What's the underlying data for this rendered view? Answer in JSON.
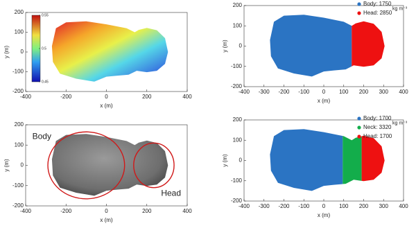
{
  "chart_data": [
    {
      "type": "shape-map",
      "variant": "colormap",
      "xlabel": "x (m)",
      "ylabel": "y (m)",
      "xlim": [
        -400,
        400
      ],
      "xticks": [
        -400,
        -200,
        0,
        200,
        400
      ],
      "ylim": [
        -200,
        200
      ],
      "yticks": [
        -200,
        -100,
        0,
        100,
        200
      ],
      "clim": [
        0.45,
        0.55
      ],
      "cticks": [
        0.45,
        0.5,
        0.55
      ]
    },
    {
      "type": "shape-map",
      "variant": "regions",
      "xlabel": "x (m)",
      "ylabel": "y (m)",
      "xlim": [
        -400,
        400
      ],
      "xticks": [
        -400,
        -300,
        -200,
        -100,
        0,
        100,
        200,
        300,
        400
      ],
      "ylim": [
        -200,
        200
      ],
      "yticks": [
        -200,
        -100,
        0,
        100,
        200
      ],
      "series": [
        {
          "name": "Body: 1750",
          "color": "#2b74c3"
        },
        {
          "name": "Head: 2850",
          "color": "#ee1111"
        }
      ],
      "unit": "kg m⁻³"
    },
    {
      "type": "shape-map",
      "variant": "ellipses",
      "xlabel": "x (m)",
      "ylabel": "y (m)",
      "xlim": [
        -400,
        400
      ],
      "xticks": [
        -400,
        -200,
        0,
        200,
        400
      ],
      "ylim": [
        -200,
        200
      ],
      "yticks": [
        -200,
        -100,
        0,
        100,
        200
      ],
      "annotations": [
        "Body",
        "Head"
      ]
    },
    {
      "type": "shape-map",
      "variant": "regions",
      "xlabel": "x (m)",
      "ylabel": "y (m)",
      "xlim": [
        -400,
        400
      ],
      "xticks": [
        -400,
        -300,
        -200,
        -100,
        0,
        100,
        200,
        300,
        400
      ],
      "ylim": [
        -200,
        200
      ],
      "yticks": [
        -200,
        -100,
        0,
        100,
        200
      ],
      "series": [
        {
          "name": "Body: 1700",
          "color": "#2b74c3"
        },
        {
          "name": "Neck: 3320",
          "color": "#13ad4b"
        },
        {
          "name": "Head: 1700",
          "color": "#ee1111"
        }
      ],
      "unit": "kg m⁻³"
    }
  ]
}
